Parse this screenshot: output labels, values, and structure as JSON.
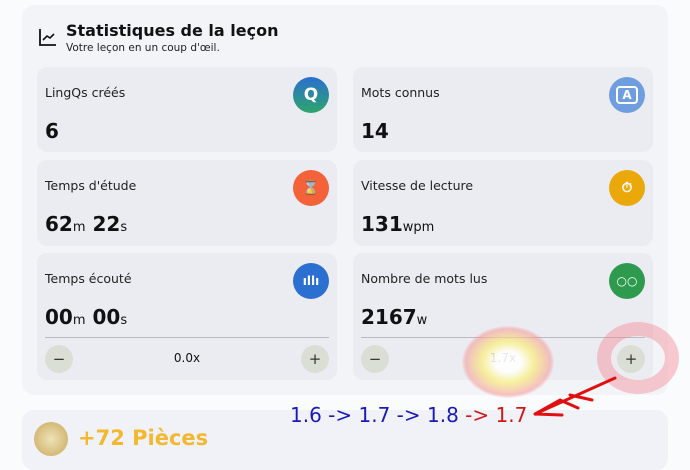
{
  "header": {
    "title": "Statistiques de la leçon",
    "subtitle": "Votre leçon en un coup d'œil.",
    "icon": "line-chart-icon"
  },
  "tiles": [
    {
      "label": "LingQs créés",
      "value": "6",
      "unit": "",
      "icon": "lingq-q-icon",
      "icon_glyph": "Q",
      "color": "#2a7ac0"
    },
    {
      "label": "Mots connus",
      "value": "14",
      "unit": "",
      "icon": "speech-bubble-a-icon",
      "icon_glyph": "A",
      "color": "#6f9ee0"
    },
    {
      "label": "Temps d'étude",
      "value": "62",
      "unit": "m",
      "value2": "22",
      "unit2": "s",
      "icon": "hourglass-icon",
      "icon_glyph": "⌛",
      "color": "#f4623a"
    },
    {
      "label": "Vitesse de lecture",
      "value": "131",
      "unit": "wpm",
      "icon": "stopwatch-icon",
      "icon_glyph": "⏱",
      "color": "#eaa80b"
    },
    {
      "label": "Temps écouté",
      "value": "00",
      "unit": "m",
      "value2": "00",
      "unit2": "s",
      "icon": "audio-wave-icon",
      "icon_glyph": "ıllı",
      "color": "#2b6fd0",
      "rate": "0.0x",
      "minus": "−",
      "plus": "+"
    },
    {
      "label": "Nombre de mots lus",
      "value": "2167",
      "unit": "w",
      "icon": "glasses-icon",
      "icon_glyph": "○○",
      "color": "#2e9a4e",
      "rate": "1.7x",
      "minus": "−",
      "plus": "+"
    }
  ],
  "coins": {
    "label": "+72 Pièces",
    "icon": "coin-icon"
  },
  "annotation": {
    "blue": "1.6 -> 1.7 -> 1.8",
    "red": " -> 1.7",
    "arrow": "←"
  }
}
